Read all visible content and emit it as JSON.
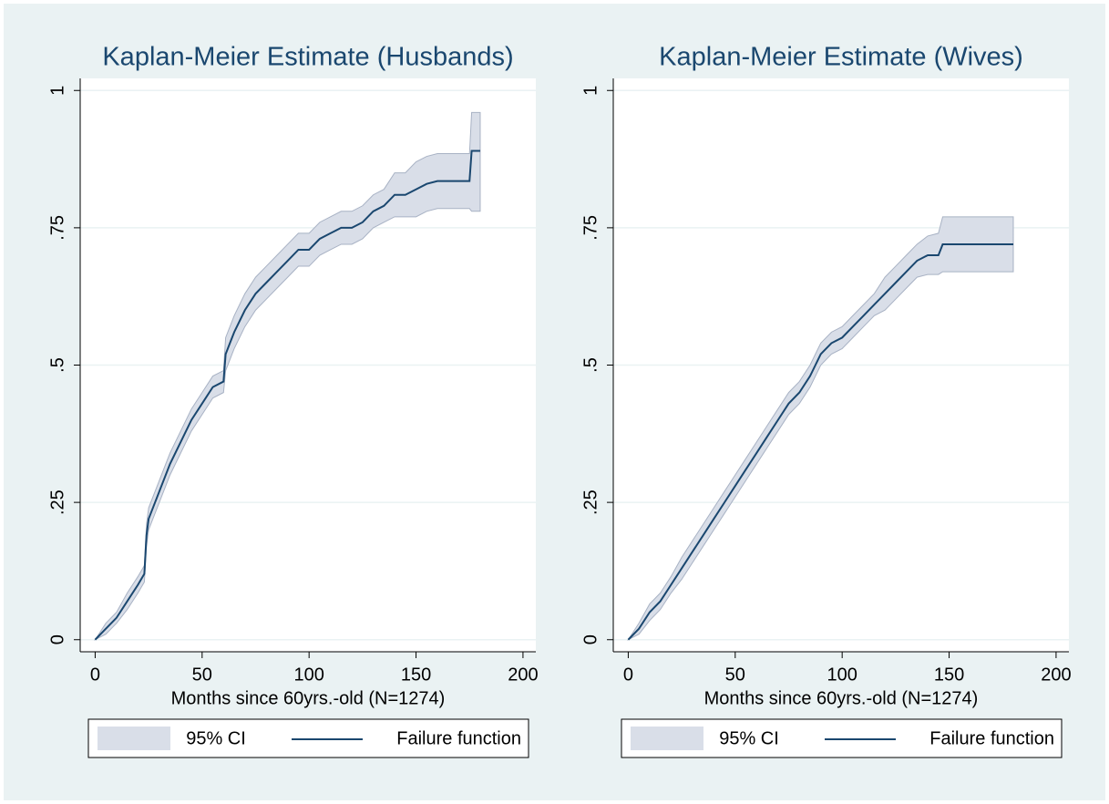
{
  "chart_data": [
    {
      "type": "line",
      "title": "Kaplan-Meier Estimate (Husbands)",
      "x_label": "Months since 60yrs.-old (N=1274)",
      "x": [
        0,
        5,
        10,
        15,
        20,
        23,
        24,
        25,
        30,
        35,
        40,
        45,
        50,
        55,
        60,
        61,
        65,
        70,
        75,
        80,
        85,
        90,
        95,
        100,
        105,
        110,
        115,
        120,
        125,
        130,
        135,
        140,
        145,
        150,
        155,
        160,
        165,
        170,
        175,
        176,
        180
      ],
      "series": [
        {
          "name": "95% CI",
          "color": "#d9dee8",
          "lower": [
            0,
            0.01,
            0.03,
            0.055,
            0.085,
            0.105,
            0.17,
            0.2,
            0.25,
            0.3,
            0.34,
            0.38,
            0.41,
            0.44,
            0.45,
            0.49,
            0.53,
            0.57,
            0.6,
            0.62,
            0.64,
            0.66,
            0.68,
            0.68,
            0.7,
            0.71,
            0.72,
            0.72,
            0.73,
            0.75,
            0.76,
            0.77,
            0.77,
            0.77,
            0.78,
            0.785,
            0.785,
            0.785,
            0.785,
            0.78,
            0.78
          ],
          "upper": [
            0,
            0.03,
            0.05,
            0.085,
            0.115,
            0.135,
            0.21,
            0.24,
            0.29,
            0.34,
            0.38,
            0.42,
            0.45,
            0.48,
            0.49,
            0.55,
            0.59,
            0.63,
            0.66,
            0.68,
            0.7,
            0.72,
            0.74,
            0.74,
            0.76,
            0.77,
            0.78,
            0.78,
            0.79,
            0.81,
            0.82,
            0.85,
            0.85,
            0.87,
            0.88,
            0.885,
            0.885,
            0.885,
            0.885,
            0.96,
            0.96
          ]
        },
        {
          "name": "Failure function",
          "color": "#1a476f",
          "values": [
            0,
            0.02,
            0.04,
            0.07,
            0.1,
            0.12,
            0.19,
            0.22,
            0.27,
            0.32,
            0.36,
            0.4,
            0.43,
            0.46,
            0.47,
            0.52,
            0.56,
            0.6,
            0.63,
            0.65,
            0.67,
            0.69,
            0.71,
            0.71,
            0.73,
            0.74,
            0.75,
            0.75,
            0.76,
            0.78,
            0.79,
            0.81,
            0.81,
            0.82,
            0.83,
            0.835,
            0.835,
            0.835,
            0.835,
            0.89,
            0.89
          ]
        }
      ],
      "xlim": [
        -7,
        206
      ],
      "ylim": [
        -0.022,
        1.022
      ],
      "xticks": [
        0,
        50,
        100,
        150,
        200
      ],
      "yticks": [
        0,
        {
          "value": 0.25,
          "label": ".25"
        },
        {
          "value": 0.5,
          "label": ".5"
        },
        {
          "value": 0.75,
          "label": ".75"
        },
        1
      ],
      "grid": true
    },
    {
      "type": "line",
      "title": "Kaplan-Meier Estimate (Wives)",
      "x_label": "Months since 60yrs.-old (N=1274)",
      "x": [
        0,
        5,
        10,
        15,
        20,
        25,
        30,
        35,
        40,
        45,
        50,
        55,
        60,
        65,
        70,
        75,
        80,
        85,
        90,
        95,
        100,
        105,
        110,
        115,
        120,
        125,
        130,
        135,
        140,
        145,
        147,
        180
      ],
      "series": [
        {
          "name": "95% CI",
          "color": "#d9dee8",
          "lower": [
            0,
            0.01,
            0.035,
            0.055,
            0.085,
            0.11,
            0.14,
            0.17,
            0.2,
            0.23,
            0.26,
            0.29,
            0.32,
            0.35,
            0.38,
            0.41,
            0.43,
            0.46,
            0.5,
            0.52,
            0.53,
            0.55,
            0.57,
            0.59,
            0.6,
            0.62,
            0.64,
            0.66,
            0.665,
            0.665,
            0.67,
            0.67
          ],
          "upper": [
            0,
            0.03,
            0.065,
            0.085,
            0.115,
            0.15,
            0.18,
            0.21,
            0.24,
            0.27,
            0.3,
            0.33,
            0.36,
            0.39,
            0.42,
            0.45,
            0.47,
            0.5,
            0.54,
            0.56,
            0.57,
            0.59,
            0.61,
            0.63,
            0.66,
            0.68,
            0.7,
            0.72,
            0.735,
            0.74,
            0.77,
            0.77
          ]
        },
        {
          "name": "Failure function",
          "color": "#1a476f",
          "values": [
            0,
            0.02,
            0.05,
            0.07,
            0.1,
            0.13,
            0.16,
            0.19,
            0.22,
            0.25,
            0.28,
            0.31,
            0.34,
            0.37,
            0.4,
            0.43,
            0.45,
            0.48,
            0.52,
            0.54,
            0.55,
            0.57,
            0.59,
            0.61,
            0.63,
            0.65,
            0.67,
            0.69,
            0.7,
            0.7,
            0.72,
            0.72
          ]
        }
      ],
      "xlim": [
        -7,
        206
      ],
      "ylim": [
        -0.022,
        1.022
      ],
      "xticks": [
        0,
        50,
        100,
        150,
        200
      ],
      "yticks": [
        0,
        {
          "value": 0.25,
          "label": ".25"
        },
        {
          "value": 0.5,
          "label": ".5"
        },
        {
          "value": 0.75,
          "label": ".75"
        },
        1
      ],
      "grid": true
    }
  ]
}
